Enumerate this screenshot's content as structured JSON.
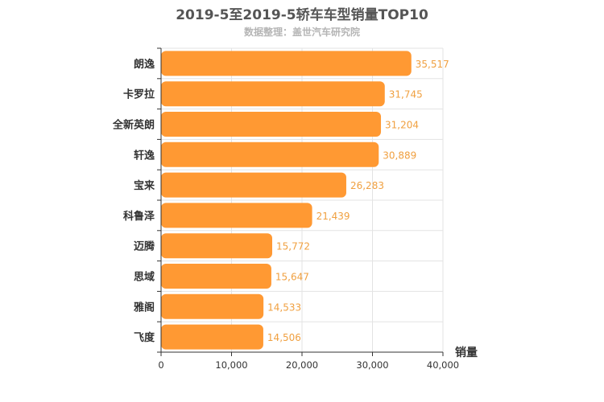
{
  "chart_data": {
    "type": "bar",
    "orientation": "horizontal",
    "title": "2019-5至2019-5轿车车型销量TOP10",
    "subtitle": "数据整理：盖世汽车研究院",
    "categories": [
      "朗逸",
      "卡罗拉",
      "全新英朗",
      "轩逸",
      "宝来",
      "科鲁泽",
      "迈腾",
      "思域",
      "雅阁",
      "飞度"
    ],
    "values": [
      35517,
      31745,
      31204,
      30889,
      26283,
      21439,
      15772,
      15647,
      14533,
      14506
    ],
    "value_labels": [
      "35,517",
      "31,745",
      "31,204",
      "30,889",
      "26,283",
      "21,439",
      "15,772",
      "15,647",
      "14,533",
      "14,506"
    ],
    "xlabel": "销量",
    "ylabel": "",
    "xlim": [
      0,
      40000
    ],
    "xticks": [
      0,
      10000,
      20000,
      30000,
      40000
    ],
    "xtick_labels": [
      "0",
      "10,000",
      "20,000",
      "30,000",
      "40,000"
    ],
    "grid": true,
    "bar_color": "#ff9933",
    "label_color": "#f0a040"
  }
}
